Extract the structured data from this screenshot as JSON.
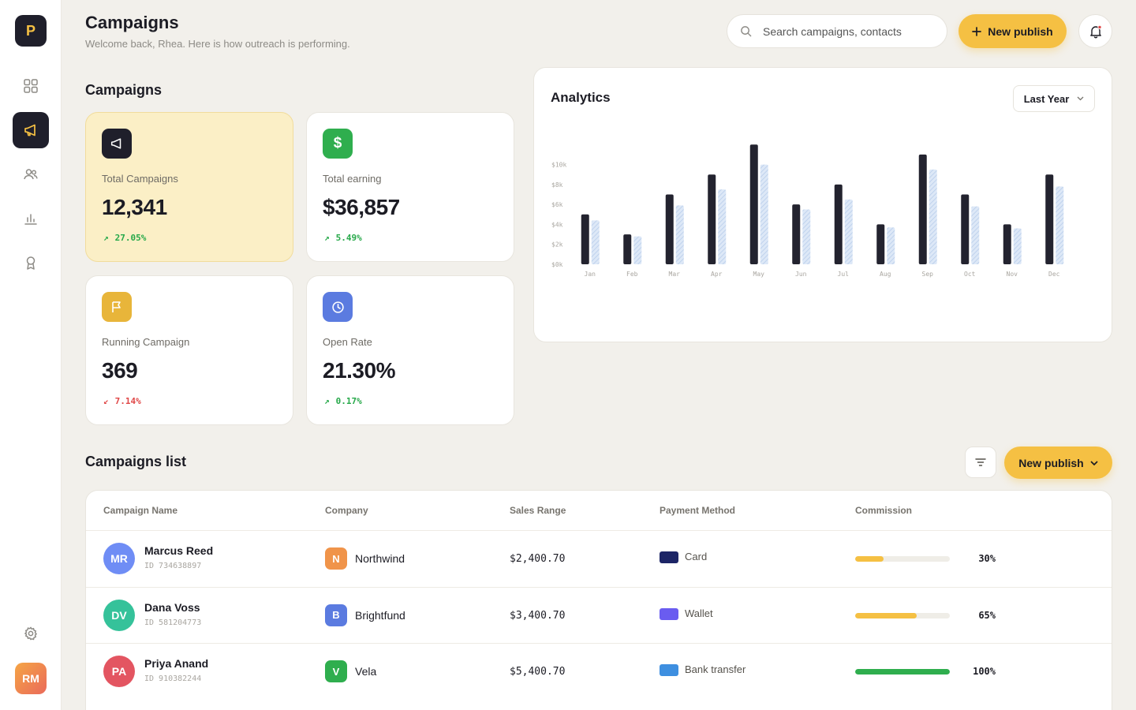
{
  "brand": {
    "logo_letter": "P"
  },
  "sidebar": {
    "items": [
      {
        "icon": "grid-icon"
      },
      {
        "icon": "megaphone-icon",
        "active": true
      },
      {
        "icon": "users-icon"
      },
      {
        "icon": "bar-chart-icon"
      },
      {
        "icon": "award-icon"
      }
    ],
    "settings_icon": "gear-icon",
    "user_initials": "RM"
  },
  "header": {
    "title": "Campaigns",
    "subtitle": "Welcome back, Rhea. Here is how outreach is performing.",
    "search_placeholder": "Search campaigns, contacts",
    "new_publish_label": "New publish",
    "notification_dot": true
  },
  "stats": {
    "section_title": "Campaigns",
    "cards": [
      {
        "label": "Total Campaigns",
        "value": "12,341",
        "change": "27.05%",
        "trend": "up",
        "icon": "megaphone-icon",
        "icon_color": "#1f1f2b"
      },
      {
        "label": "Total earning",
        "value": "$36,857",
        "change": "5.49%",
        "trend": "up",
        "icon": "dollar-icon",
        "icon_color": "#2fae4e"
      },
      {
        "label": "Running Campaign",
        "value": "369",
        "change": "7.14%",
        "trend": "down",
        "icon": "flag-icon",
        "icon_color": "#e8b53a"
      },
      {
        "label": "Open Rate",
        "value": "21.30%",
        "change": "0.17%",
        "trend": "up",
        "icon": "clock-icon",
        "icon_color": "#5b7be0"
      }
    ]
  },
  "analytics": {
    "title": "Analytics",
    "period": "Last Year"
  },
  "chart_data": {
    "type": "bar",
    "categories": [
      "Jan",
      "Feb",
      "Mar",
      "Apr",
      "May",
      "Jun",
      "Jul",
      "Aug",
      "Sep",
      "Oct",
      "Nov",
      "Dec"
    ],
    "series": [
      {
        "values": [
          5000,
          3000,
          7000,
          9000,
          12000,
          6000,
          8000,
          4000,
          11000,
          7000,
          4000,
          9000
        ],
        "color": "#23232f"
      },
      {
        "values": [
          4400,
          2800,
          5900,
          7500,
          10000,
          5500,
          6500,
          3700,
          9500,
          5800,
          3600,
          7800
        ],
        "color": "#c9daf2",
        "pattern": "hatched"
      }
    ],
    "yticks": [
      "$0k",
      "$2k",
      "$4k",
      "$6k",
      "$8k",
      "$10k"
    ],
    "ylim": [
      0,
      14000
    ],
    "grid": false
  },
  "list": {
    "title": "Campaigns list",
    "filter_icon": "filter-icon",
    "new_publish_label": "New publish",
    "columns": [
      "Campaign Name",
      "Company",
      "Sales Range",
      "Payment Method",
      "Commission"
    ],
    "rows": [
      {
        "initials": "MR",
        "avatar_color": "#6f8df5",
        "name": "Marcus Reed",
        "id": "ID 734638897",
        "company_letter": "N",
        "company_color": "#f0944a",
        "company": "Northwind",
        "sales": "$2,400.70",
        "payment_color": "#1c2566",
        "payment": "Card",
        "commission": 30,
        "commission_label": "30%",
        "bar_color": "#f5c043"
      },
      {
        "initials": "DV",
        "avatar_color": "#35c29a",
        "name": "Dana Voss",
        "id": "ID 581204773",
        "company_letter": "B",
        "company_color": "#5b7be0",
        "company": "Brightfund",
        "sales": "$3,400.70",
        "payment_color": "#6a5cf0",
        "payment": "Wallet",
        "commission": 65,
        "commission_label": "65%",
        "bar_color": "#f5c043"
      },
      {
        "initials": "PA",
        "avatar_color": "#e35561",
        "name": "Priya Anand",
        "id": "ID 910382244",
        "company_letter": "V",
        "company_color": "#2fae4e",
        "company": "Vela",
        "sales": "$5,400.70",
        "payment_color": "#3e8fe0",
        "payment": "Bank transfer",
        "commission": 100,
        "commission_label": "100%",
        "bar_color": "#2fae4e"
      }
    ]
  }
}
